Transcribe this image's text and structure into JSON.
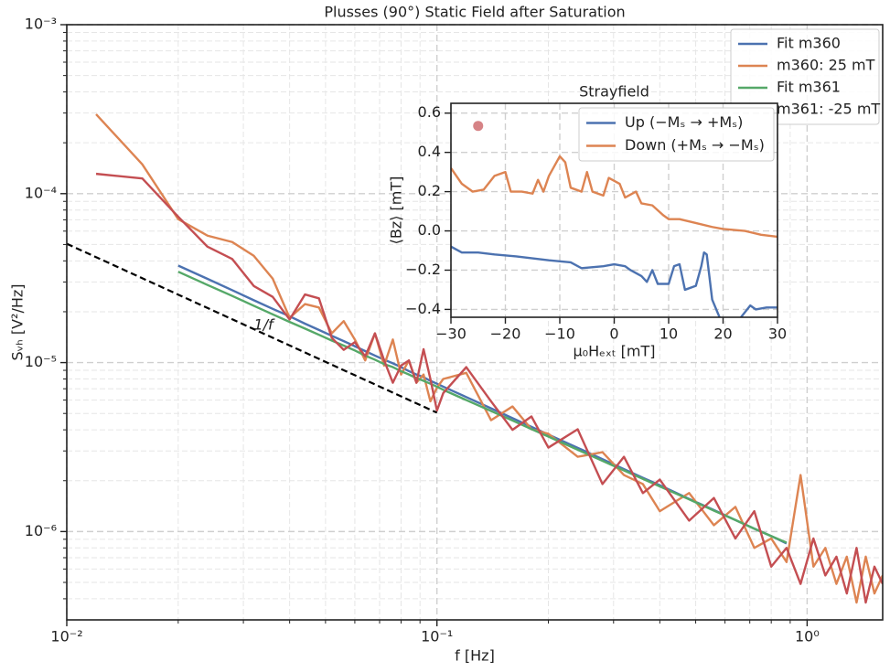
{
  "chart_data": [
    {
      "type": "line",
      "title": "Plusses (90°) Static Field after Saturation",
      "xlabel": "f [Hz]",
      "ylabel": "Sᵥₕ [V²/Hz]",
      "xscale": "log",
      "yscale": "log",
      "xlim": [
        0.01,
        1.6
      ],
      "ylim": [
        3e-07,
        0.001
      ],
      "xticks": [
        {
          "value": 0.01,
          "label": "10⁻²"
        },
        {
          "value": 0.1,
          "label": "10⁻¹"
        },
        {
          "value": 1,
          "label": "10⁰"
        }
      ],
      "yticks": [
        {
          "value": 1e-06,
          "label": "10⁻⁶"
        },
        {
          "value": 1e-05,
          "label": "10⁻⁵"
        },
        {
          "value": 0.0001,
          "label": "10⁻⁴"
        },
        {
          "value": 0.001,
          "label": "10⁻³"
        }
      ],
      "xminorticks": [
        0.02,
        0.03,
        0.04,
        0.05,
        0.06,
        0.07,
        0.08,
        0.09,
        0.2,
        0.3,
        0.4,
        0.5,
        0.6,
        0.7,
        0.8,
        0.9
      ],
      "yminorticks": [
        4e-07,
        5e-07,
        6e-07,
        7e-07,
        8e-07,
        9e-07,
        2e-06,
        3e-06,
        4e-06,
        5e-06,
        6e-06,
        7e-06,
        8e-06,
        9e-06,
        2e-05,
        3e-05,
        4e-05,
        5e-05,
        6e-05,
        7e-05,
        8e-05,
        9e-05,
        0.0002,
        0.0003,
        0.0004,
        0.0005,
        0.0006,
        0.0007,
        0.0008,
        0.0009
      ],
      "grid": true,
      "legend": "upper right",
      "x": [
        0.012,
        0.016,
        0.02,
        0.024,
        0.028,
        0.032,
        0.036,
        0.04,
        0.044,
        0.048,
        0.052,
        0.056,
        0.06,
        0.064,
        0.068,
        0.072,
        0.076,
        0.08,
        0.084,
        0.088,
        0.092,
        0.096,
        0.1,
        0.104,
        0.12,
        0.14,
        0.16,
        0.18,
        0.2,
        0.24,
        0.28,
        0.32,
        0.36,
        0.4,
        0.48,
        0.56,
        0.64,
        0.72,
        0.8,
        0.88,
        0.96,
        1.04,
        1.12,
        1.2,
        1.28,
        1.36,
        1.44,
        1.52,
        1.6
      ],
      "series": [
        {
          "name": "Fit m360",
          "color": "#4c72b0",
          "values": [
            null,
            null,
            3.75e-05,
            3.13e-05,
            2.68e-05,
            2.34e-05,
            2.08e-05,
            1.88e-05,
            1.7e-05,
            1.56e-05,
            1.44e-05,
            1.34e-05,
            1.25e-05,
            1.17e-05,
            1.1e-05,
            1.04e-05,
            9.9e-06,
            9.4e-06,
            8.9e-06,
            8.5e-06,
            8.2e-06,
            7.8e-06,
            7.5e-06,
            7.2e-06,
            6.25e-06,
            5.36e-06,
            4.69e-06,
            4.17e-06,
            3.75e-06,
            3.13e-06,
            2.68e-06,
            2.34e-06,
            2.08e-06,
            1.88e-06,
            1.56e-06,
            1.34e-06,
            1.17e-06,
            1.04e-06,
            9.4e-07,
            8.5e-07,
            null,
            null,
            null,
            null,
            null,
            null,
            null,
            null,
            null
          ]
        },
        {
          "name": "m360: 25 mT",
          "color": "#dd8452",
          "values": [
            0.000295,
            0.000149,
            7.06e-05,
            5.64e-05,
            5.17e-05,
            4.29e-05,
            3.14e-05,
            1.84e-05,
            2.22e-05,
            2.12e-05,
            1.49e-05,
            1.76e-05,
            1.37e-05,
            1.03e-05,
            1.49e-05,
            9.6e-06,
            1.37e-05,
            8.5e-06,
            1.03e-05,
            7.6e-06,
            8.5e-06,
            5.9e-06,
            7.1e-06,
            8e-06,
            8.7e-06,
            4.56e-06,
            5.5e-06,
            4.03e-06,
            3.79e-06,
            2.77e-06,
            2.95e-06,
            2.16e-06,
            1.91e-06,
            1.32e-06,
            1.69e-06,
            1.09e-06,
            1.4e-06,
            8e-07,
            9.1e-07,
            6.6e-07,
            2.16e-06,
            6.2e-07,
            8e-07,
            4.9e-07,
            7.1e-07,
            3.8e-07,
            7.1e-07,
            4.3e-07,
            5.5e-07
          ]
        },
        {
          "name": "Fit m361",
          "color": "#55a868",
          "values": [
            null,
            null,
            3.45e-05,
            2.88e-05,
            2.48e-05,
            2.17e-05,
            1.93e-05,
            1.74e-05,
            1.59e-05,
            1.46e-05,
            1.35e-05,
            1.26e-05,
            1.18e-05,
            1.1e-05,
            1.04e-05,
            9.8e-06,
            9.4e-06,
            8.9e-06,
            8.5e-06,
            8.1e-06,
            7.8e-06,
            7.5e-06,
            7.2e-06,
            6.9e-06,
            6e-06,
            5.17e-06,
            4.54e-06,
            4.04e-06,
            3.65e-06,
            3.05e-06,
            2.62e-06,
            2.3e-06,
            2.05e-06,
            1.85e-06,
            1.55e-06,
            1.33e-06,
            1.17e-06,
            1.04e-06,
            9.4e-07,
            8.6e-07,
            null,
            null,
            null,
            null,
            null,
            null,
            null,
            null,
            null
          ]
        },
        {
          "name": "m361: -25 mT",
          "color": "#c44e52",
          "values": [
            0.000131,
            0.000123,
            7.3e-05,
            4.85e-05,
            4.1e-05,
            2.84e-05,
            2.45e-05,
            1.8e-05,
            2.53e-05,
            2.4e-05,
            1.4e-05,
            1.19e-05,
            1.32e-05,
            1.09e-05,
            1.49e-05,
            1.03e-05,
            7.6e-06,
            9.6e-06,
            1.03e-05,
            7.6e-06,
            1.2e-05,
            8e-06,
            5.2e-06,
            6.6e-06,
            9.4e-06,
            5.9e-06,
            4e-06,
            4.8e-06,
            3.14e-06,
            4.03e-06,
            1.91e-06,
            2.77e-06,
            1.69e-06,
            2.03e-06,
            1.16e-06,
            1.58e-06,
            9.1e-07,
            1.32e-06,
            6.2e-07,
            8e-07,
            4.9e-07,
            9.1e-07,
            5.5e-07,
            7.1e-07,
            4.3e-07,
            8e-07,
            3.8e-07,
            6.2e-07,
            4.9e-07
          ]
        }
      ],
      "reference": {
        "label": "1/f",
        "color": "#000000",
        "x": [
          0.01,
          0.1
        ],
        "values": [
          5.05e-05,
          5.05e-06
        ]
      }
    },
    {
      "type": "line",
      "title": "Strayfield",
      "xlabel": "μ₀Hₑₓₜ [mT]",
      "ylabel": "⟨Bz⟩ [mT]",
      "xlim": [
        -30,
        30
      ],
      "ylim": [
        -0.44,
        0.65
      ],
      "xticks": [
        {
          "value": -30,
          "label": "−30"
        },
        {
          "value": -20,
          "label": "−20"
        },
        {
          "value": -10,
          "label": "−10"
        },
        0,
        10,
        20,
        30
      ],
      "yticks": [
        {
          "value": -0.4,
          "label": "−0.4"
        },
        {
          "value": -0.2,
          "label": "−0.2"
        },
        {
          "value": 0,
          "label": "0.0"
        },
        0.2,
        0.4,
        0.6
      ],
      "grid": true,
      "legend": "upper right",
      "series": [
        {
          "name": "Up (−Mₛ → +Mₛ)",
          "color": "#4c72b0",
          "x": [
            -30,
            -28,
            -25,
            -22,
            -18,
            -15,
            -12,
            -8,
            -6,
            -2,
            0,
            2,
            3,
            5,
            6,
            7,
            8,
            10,
            11,
            12,
            13,
            15,
            16,
            16.5,
            17,
            18,
            19.5,
            21,
            23,
            25,
            26,
            28,
            30
          ],
          "values": [
            -0.08,
            -0.11,
            -0.11,
            -0.12,
            -0.13,
            -0.14,
            -0.15,
            -0.16,
            -0.19,
            -0.18,
            -0.17,
            -0.18,
            -0.2,
            -0.23,
            -0.26,
            -0.2,
            -0.27,
            -0.27,
            -0.18,
            -0.17,
            -0.3,
            -0.28,
            -0.18,
            -0.11,
            -0.12,
            -0.35,
            -0.45,
            -0.48,
            -0.45,
            -0.38,
            -0.4,
            -0.39,
            -0.39
          ]
        },
        {
          "name": "Down (+Mₛ → −Mₛ)",
          "color": "#dd8452",
          "x": [
            -30,
            -28,
            -26,
            -24,
            -22,
            -20,
            -19,
            -17,
            -15,
            -14,
            -13,
            -12,
            -10,
            -9,
            -8,
            -6,
            -5,
            -4,
            -2,
            -1,
            1,
            2,
            4,
            5,
            7,
            9,
            10,
            12,
            15,
            18,
            20,
            24,
            27,
            30
          ],
          "values": [
            0.32,
            0.24,
            0.2,
            0.21,
            0.28,
            0.3,
            0.2,
            0.2,
            0.19,
            0.26,
            0.2,
            0.28,
            0.38,
            0.35,
            0.22,
            0.2,
            0.3,
            0.2,
            0.18,
            0.27,
            0.24,
            0.17,
            0.2,
            0.14,
            0.13,
            0.08,
            0.06,
            0.06,
            0.04,
            0.02,
            0.01,
            0.0,
            -0.02,
            -0.03
          ]
        }
      ],
      "scatter": {
        "color": "#c44e52",
        "x": [
          -25
        ],
        "values": [
          0.535
        ]
      }
    }
  ]
}
